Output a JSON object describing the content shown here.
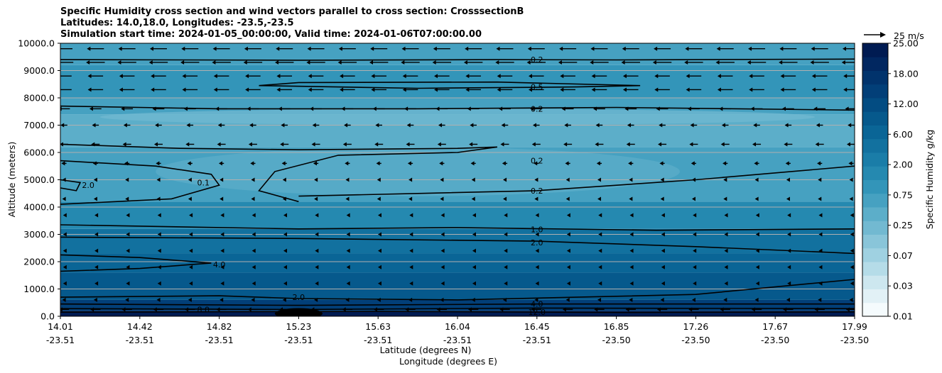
{
  "chart_data": {
    "type": "contour",
    "title_lines": [
      "Specific Humidity cross section and wind vectors parallel to cross section: CrosssectionB",
      "Latitudes: 14.0,18.0, Longitudes: -23.5,-23.5",
      "Simulation start time: 2024-01-05_00:00:00, Valid time: 2024-01-06T07:00:00.00"
    ],
    "ylabel": "Altitude (meters)",
    "xlabel_lat": "Latitude (degrees N)",
    "xlabel_lon": "Longitude (degrees E)",
    "ylim": [
      0,
      10000
    ],
    "y_ticks": [
      "0.0",
      "1000.0",
      "2000.0",
      "3000.0",
      "4000.0",
      "5000.0",
      "6000.0",
      "7000.0",
      "8000.0",
      "9000.0",
      "10000.0"
    ],
    "x_ticks": [
      {
        "lat": "14.01",
        "lon": "-23.51"
      },
      {
        "lat": "14.42",
        "lon": "-23.51"
      },
      {
        "lat": "14.82",
        "lon": "-23.51"
      },
      {
        "lat": "15.23",
        "lon": "-23.51"
      },
      {
        "lat": "15.63",
        "lon": "-23.51"
      },
      {
        "lat": "16.04",
        "lon": "-23.51"
      },
      {
        "lat": "16.45",
        "lon": "-23.51"
      },
      {
        "lat": "16.85",
        "lon": "-23.50"
      },
      {
        "lat": "17.26",
        "lon": "-23.50"
      },
      {
        "lat": "17.67",
        "lon": "-23.50"
      },
      {
        "lat": "17.99",
        "lon": "-23.50"
      }
    ],
    "colorbar": {
      "label": "Specific Humidity g/kg",
      "tick_labels": [
        "0.01",
        "0.03",
        "0.07",
        "0.25",
        "0.75",
        "2.00",
        "6.00",
        "12.00",
        "18.00",
        "25.00"
      ],
      "colors": [
        "#f5fbfd",
        "#e2f1f6",
        "#cde7ef",
        "#b5dce8",
        "#9fd1e1",
        "#89c5d9",
        "#72b9d1",
        "#5caec9",
        "#46a1c1",
        "#3395b9",
        "#2589b0",
        "#1a7da8",
        "#12719f",
        "#0a6596",
        "#06598c",
        "#034c82",
        "#023f78",
        "#01336c",
        "#012760",
        "#001b52"
      ]
    },
    "quiver_key_label": "25 m/s",
    "humidity_bands": [
      {
        "from": 0,
        "to": 200,
        "level": 19
      },
      {
        "from": 200,
        "to": 600,
        "level": 16
      },
      {
        "from": 600,
        "to": 1600,
        "level": 14
      },
      {
        "from": 1600,
        "to": 2300,
        "level": 13
      },
      {
        "from": 2300,
        "to": 3200,
        "level": 12
      },
      {
        "from": 3200,
        "to": 4200,
        "level": 10
      },
      {
        "from": 4200,
        "to": 6200,
        "level": 8
      },
      {
        "from": 6200,
        "to": 7400,
        "level": 7
      },
      {
        "from": 7400,
        "to": 8000,
        "level": 8
      },
      {
        "from": 8000,
        "to": 9200,
        "level": 9
      },
      {
        "from": 9200,
        "to": 10000,
        "level": 8
      }
    ],
    "contours": [
      {
        "label": "0.2",
        "label_x": 0.6,
        "label_alt": 9400,
        "points": [
          [
            0,
            9400
          ],
          [
            0.3,
            9380
          ],
          [
            0.55,
            9400
          ],
          [
            0.7,
            9390
          ],
          [
            1,
            9420
          ]
        ]
      },
      {
        "label": "0.5",
        "label_x": 0.6,
        "label_alt": 8400,
        "points": [
          [
            0.25,
            8450
          ],
          [
            0.45,
            8350
          ],
          [
            0.65,
            8400
          ],
          [
            0.73,
            8450
          ],
          [
            0.55,
            8580
          ],
          [
            0.3,
            8560
          ],
          [
            0.25,
            8450
          ]
        ]
      },
      {
        "label": "0.2",
        "label_x": 0.6,
        "label_alt": 7600,
        "points": [
          [
            0,
            7700
          ],
          [
            0.2,
            7600
          ],
          [
            0.45,
            7600
          ],
          [
            0.7,
            7650
          ],
          [
            1,
            7550
          ]
        ]
      },
      {
        "label": "0.2",
        "label_x": 0.6,
        "label_alt": 5700,
        "points": [
          [
            0,
            6300
          ],
          [
            0.15,
            6150
          ],
          [
            0.3,
            6100
          ],
          [
            0.5,
            6150
          ],
          [
            0.55,
            6200
          ],
          [
            0.5,
            6000
          ],
          [
            0.35,
            5900
          ],
          [
            0.27,
            5300
          ],
          [
            0.25,
            4600
          ],
          [
            0.3,
            4200
          ]
        ]
      },
      {
        "label": "0.2",
        "label_x": 0.6,
        "label_alt": 4600,
        "points": [
          [
            0.3,
            4400
          ],
          [
            0.45,
            4500
          ],
          [
            0.6,
            4600
          ],
          [
            0.8,
            5000
          ],
          [
            1,
            5500
          ]
        ]
      },
      {
        "label": "0.1",
        "label_x": 0.18,
        "label_alt": 4900,
        "points": [
          [
            0,
            5700
          ],
          [
            0.12,
            5500
          ],
          [
            0.19,
            5200
          ],
          [
            0.2,
            4800
          ],
          [
            0.14,
            4300
          ],
          [
            0,
            4100
          ]
        ]
      },
      {
        "label": "2.0",
        "label_x": 0.035,
        "label_alt": 4800,
        "points": [
          [
            0,
            4700
          ],
          [
            0.02,
            4600
          ],
          [
            0.025,
            4900
          ],
          [
            0,
            5000
          ]
        ]
      },
      {
        "label": "1.0",
        "label_x": 0.6,
        "label_alt": 3180,
        "points": [
          [
            0,
            3350
          ],
          [
            0.3,
            3200
          ],
          [
            0.5,
            3250
          ],
          [
            0.75,
            3150
          ],
          [
            1,
            3200
          ]
        ]
      },
      {
        "label": "2.0",
        "label_x": 0.6,
        "label_alt": 2700,
        "points": [
          [
            0,
            2900
          ],
          [
            0.3,
            2850
          ],
          [
            0.6,
            2750
          ],
          [
            0.8,
            2550
          ],
          [
            1,
            2300
          ]
        ]
      },
      {
        "label": "4.0",
        "label_x": 0.2,
        "label_alt": 1900,
        "points": [
          [
            0,
            2250
          ],
          [
            0.1,
            2150
          ],
          [
            0.19,
            1950
          ],
          [
            0.1,
            1750
          ],
          [
            0,
            1650
          ]
        ]
      },
      {
        "label": "2.0",
        "label_x": 0.3,
        "label_alt": 700,
        "points": [
          [
            0,
            700
          ],
          [
            0.2,
            750
          ],
          [
            0.3,
            650
          ],
          [
            0.5,
            600
          ],
          [
            0.65,
            700
          ],
          [
            0.8,
            800
          ],
          [
            1,
            1350
          ]
        ]
      },
      {
        "label": "4.0",
        "label_x": 0.6,
        "label_alt": 450,
        "points": [
          [
            0,
            450
          ],
          [
            0.3,
            400
          ],
          [
            0.6,
            450
          ],
          [
            1,
            450
          ]
        ]
      },
      {
        "label": "8.0",
        "label_x": 0.18,
        "label_alt": 250,
        "points": [
          [
            0,
            280
          ],
          [
            0.3,
            250
          ],
          [
            0.6,
            300
          ],
          [
            1,
            280
          ]
        ]
      },
      {
        "label": "12.0",
        "label_x": 0.6,
        "label_alt": 150,
        "points": [
          [
            0,
            150
          ],
          [
            0.4,
            180
          ],
          [
            0.7,
            140
          ],
          [
            1,
            160
          ]
        ]
      }
    ],
    "wind_rows": [
      {
        "alt": 9800,
        "speed": 0.5
      },
      {
        "alt": 9300,
        "speed": 0.55
      },
      {
        "alt": 8800,
        "speed": 0.45
      },
      {
        "alt": 8300,
        "speed": 0.45
      },
      {
        "alt": 7600,
        "speed": 0.35
      },
      {
        "alt": 7000,
        "speed": 0.2
      },
      {
        "alt": 6300,
        "speed": 0.25
      },
      {
        "alt": 5600,
        "speed": 0.15
      },
      {
        "alt": 5000,
        "speed": 0.1
      },
      {
        "alt": 4300,
        "speed": 0.1
      },
      {
        "alt": 3700,
        "speed": 0.05
      },
      {
        "alt": 3000,
        "speed": 0.05
      },
      {
        "alt": 2400,
        "speed": 0.05
      },
      {
        "alt": 1800,
        "speed": 0.05
      },
      {
        "alt": 1200,
        "speed": 0.05
      },
      {
        "alt": 600,
        "speed": 0.1
      },
      {
        "alt": 250,
        "speed": 0.3
      }
    ]
  }
}
